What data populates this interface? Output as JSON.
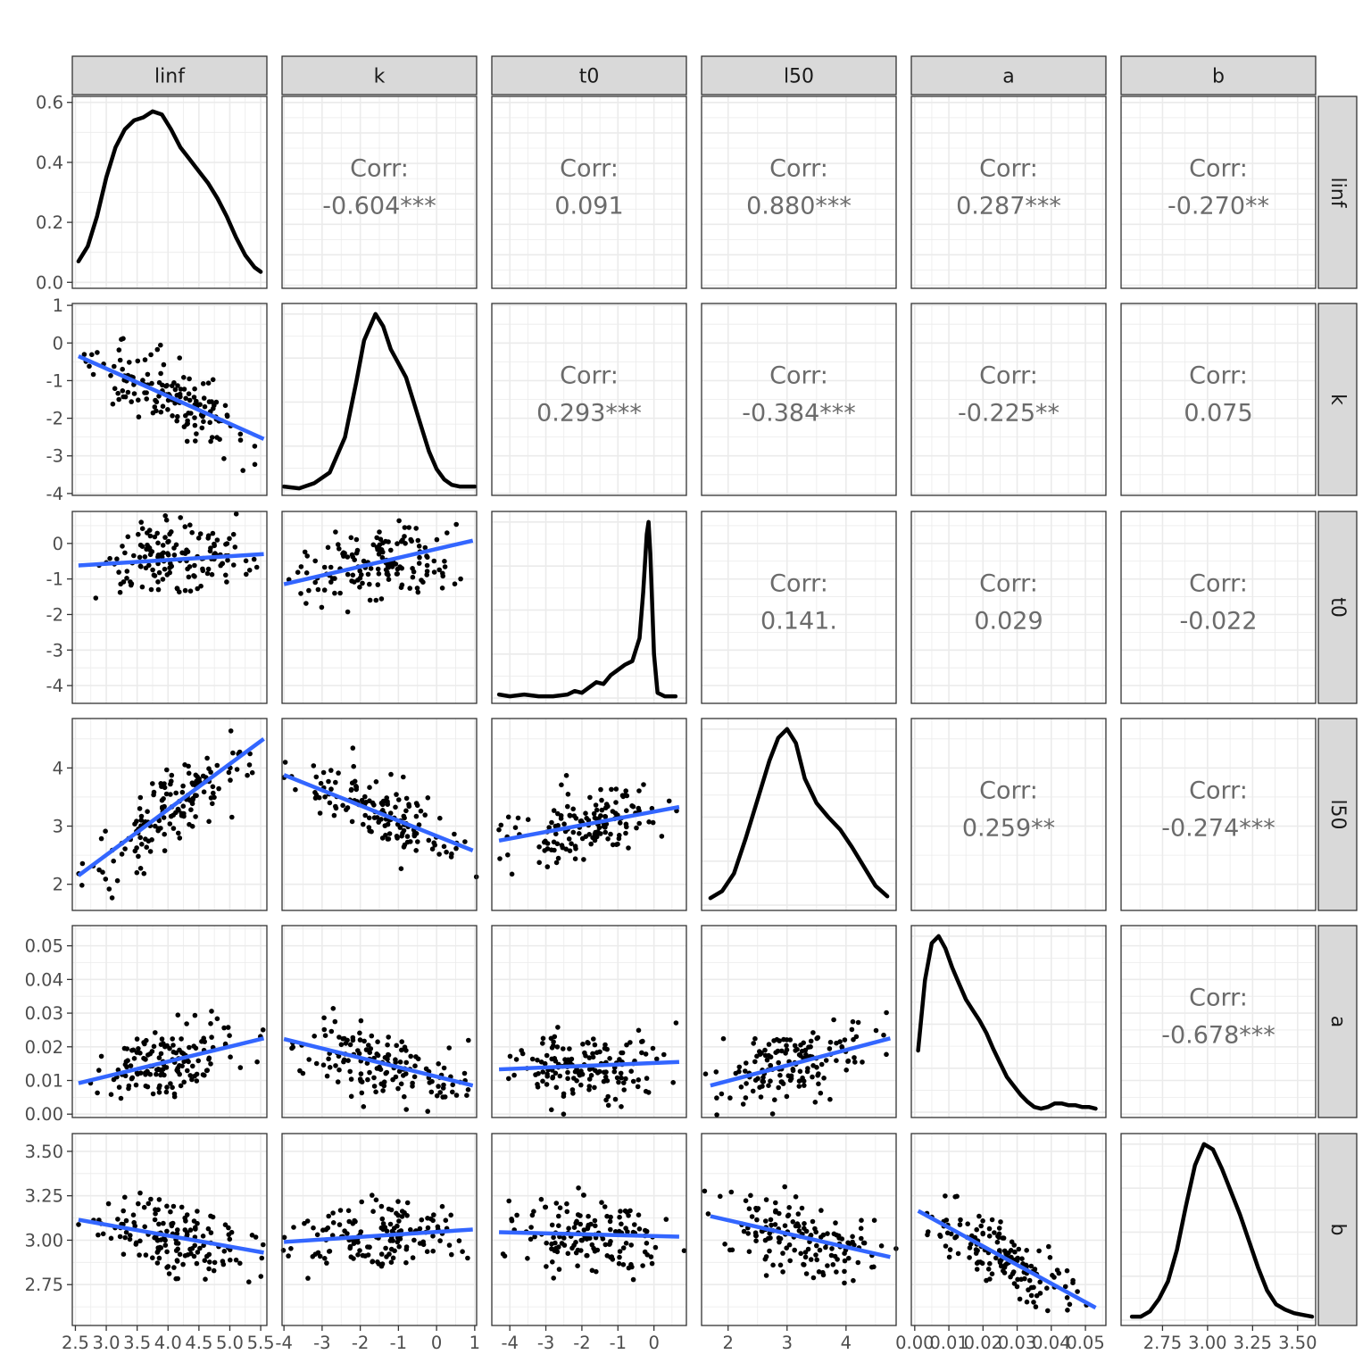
{
  "chart_data": {
    "type": "scatter-matrix",
    "title": "",
    "variables": [
      "linf",
      "k",
      "t0",
      "l50",
      "a",
      "b"
    ],
    "corr_label": "Corr:",
    "correlations": [
      {
        "row": "k",
        "col": "linf",
        "value": "-0.604***"
      },
      {
        "row": "t0",
        "col": "linf",
        "value": "0.091"
      },
      {
        "row": "l50",
        "col": "linf",
        "value": "0.880***"
      },
      {
        "row": "a",
        "col": "linf",
        "value": "0.287***"
      },
      {
        "row": "b",
        "col": "linf",
        "value": "-0.270**"
      },
      {
        "row": "t0",
        "col": "k",
        "value": "0.293***"
      },
      {
        "row": "l50",
        "col": "k",
        "value": "-0.384***"
      },
      {
        "row": "a",
        "col": "k",
        "value": "-0.225**"
      },
      {
        "row": "b",
        "col": "k",
        "value": "0.075"
      },
      {
        "row": "l50",
        "col": "t0",
        "value": "0.141."
      },
      {
        "row": "a",
        "col": "t0",
        "value": "0.029"
      },
      {
        "row": "b",
        "col": "t0",
        "value": "-0.022"
      },
      {
        "row": "a",
        "col": "l50",
        "value": "0.259**"
      },
      {
        "row": "b",
        "col": "l50",
        "value": "-0.274***"
      },
      {
        "row": "b",
        "col": "a",
        "value": "-0.678***"
      }
    ],
    "axes": {
      "linf": {
        "range": [
          2.45,
          5.6
        ],
        "ticks": [
          2.5,
          3.0,
          3.5,
          4.0,
          4.5,
          5.0,
          5.5
        ],
        "tick_labels": [
          "2.5",
          "3.0",
          "3.5",
          "4.0",
          "4.5",
          "5.0",
          "5.5"
        ]
      },
      "k": {
        "range": [
          -4.05,
          1.05
        ],
        "ticks": [
          -4,
          -3,
          -2,
          -1,
          0,
          1
        ],
        "tick_labels": [
          "-4",
          "-3",
          "-2",
          "-1",
          "0",
          "1"
        ]
      },
      "t0": {
        "range": [
          -4.5,
          0.9
        ],
        "ticks": [
          -4,
          -3,
          -2,
          -1,
          0
        ],
        "tick_labels": [
          "-4",
          "-3",
          "-2",
          "-1",
          "0"
        ]
      },
      "l50": {
        "range": [
          1.55,
          4.85
        ],
        "ticks": [
          2,
          3,
          4
        ],
        "tick_labels": [
          "2",
          "3",
          "4"
        ]
      },
      "a": {
        "range": [
          -0.001,
          0.056
        ],
        "ticks": [
          0.0,
          0.01,
          0.02,
          0.03,
          0.04,
          0.05
        ],
        "tick_labels": [
          "0.00",
          "0.01",
          "0.02",
          "0.03",
          "0.04",
          "0.05"
        ]
      },
      "b": {
        "range": [
          2.52,
          3.6
        ],
        "ticks": [
          2.75,
          3.0,
          3.25,
          3.5
        ],
        "tick_labels": [
          "2.75",
          "3.00",
          "3.25",
          "3.50"
        ]
      }
    },
    "linf_density": {
      "y_range": [
        -0.02,
        0.62
      ],
      "ticks": [
        0.0,
        0.2,
        0.4,
        0.6
      ],
      "tick_labels": [
        "0.0",
        "0.2",
        "0.4",
        "0.6"
      ],
      "x": [
        2.55,
        2.7,
        2.85,
        3.0,
        3.15,
        3.3,
        3.45,
        3.6,
        3.75,
        3.9,
        4.05,
        4.2,
        4.35,
        4.5,
        4.65,
        4.8,
        4.95,
        5.1,
        5.25,
        5.4,
        5.5
      ],
      "y": [
        0.07,
        0.12,
        0.22,
        0.35,
        0.45,
        0.51,
        0.54,
        0.55,
        0.57,
        0.56,
        0.51,
        0.45,
        0.41,
        0.37,
        0.33,
        0.28,
        0.22,
        0.15,
        0.09,
        0.05,
        0.035
      ]
    },
    "densities": {
      "k": {
        "x": [
          -4.0,
          -3.6,
          -3.2,
          -2.8,
          -2.4,
          -2.1,
          -1.9,
          -1.6,
          -1.4,
          -1.2,
          -1.0,
          -0.8,
          -0.6,
          -0.4,
          -0.2,
          0.0,
          0.2,
          0.4,
          0.6,
          1.0
        ],
        "y": [
          0.02,
          0.01,
          0.04,
          0.1,
          0.3,
          0.62,
          0.85,
          1.0,
          0.93,
          0.8,
          0.72,
          0.64,
          0.5,
          0.36,
          0.22,
          0.12,
          0.06,
          0.03,
          0.02,
          0.02
        ]
      },
      "t0": {
        "x": [
          -4.3,
          -4.0,
          -3.6,
          -3.2,
          -2.8,
          -2.4,
          -2.2,
          -2.0,
          -1.8,
          -1.6,
          -1.4,
          -1.2,
          -1.0,
          -0.8,
          -0.6,
          -0.4,
          -0.3,
          -0.2,
          -0.15,
          -0.1,
          0.0,
          0.1,
          0.3,
          0.6
        ],
        "y": [
          0.02,
          0.01,
          0.02,
          0.01,
          0.01,
          0.02,
          0.04,
          0.03,
          0.06,
          0.09,
          0.08,
          0.13,
          0.16,
          0.19,
          0.21,
          0.34,
          0.6,
          0.93,
          1.0,
          0.82,
          0.25,
          0.03,
          0.01,
          0.01
        ]
      },
      "l50": {
        "x": [
          1.7,
          1.9,
          2.1,
          2.3,
          2.5,
          2.7,
          2.85,
          3.0,
          3.15,
          3.3,
          3.5,
          3.7,
          3.9,
          4.1,
          4.3,
          4.5,
          4.7
        ],
        "y": [
          0.04,
          0.08,
          0.18,
          0.38,
          0.6,
          0.82,
          0.95,
          1.0,
          0.92,
          0.72,
          0.58,
          0.5,
          0.43,
          0.33,
          0.22,
          0.11,
          0.05
        ]
      },
      "a": {
        "x": [
          0.001,
          0.003,
          0.005,
          0.007,
          0.009,
          0.011,
          0.013,
          0.015,
          0.017,
          0.019,
          0.021,
          0.023,
          0.025,
          0.027,
          0.029,
          0.031,
          0.033,
          0.035,
          0.037,
          0.039,
          0.041,
          0.043,
          0.045,
          0.047,
          0.049,
          0.051,
          0.053
        ],
        "y": [
          0.35,
          0.75,
          0.96,
          1.0,
          0.93,
          0.82,
          0.73,
          0.64,
          0.58,
          0.52,
          0.45,
          0.36,
          0.28,
          0.2,
          0.15,
          0.1,
          0.06,
          0.03,
          0.02,
          0.03,
          0.05,
          0.05,
          0.04,
          0.04,
          0.03,
          0.03,
          0.02
        ]
      },
      "b": {
        "x": [
          2.58,
          2.63,
          2.68,
          2.73,
          2.78,
          2.83,
          2.88,
          2.93,
          2.98,
          3.03,
          3.08,
          3.13,
          3.18,
          3.23,
          3.28,
          3.33,
          3.38,
          3.43,
          3.48,
          3.53,
          3.58
        ],
        "y": [
          0.02,
          0.02,
          0.05,
          0.12,
          0.22,
          0.4,
          0.65,
          0.88,
          1.0,
          0.97,
          0.86,
          0.73,
          0.6,
          0.45,
          0.3,
          0.17,
          0.09,
          0.06,
          0.04,
          0.03,
          0.02
        ]
      }
    },
    "regression_lines": [
      {
        "row": "k",
        "col": "linf",
        "x": [
          2.55,
          5.55
        ],
        "y": [
          -0.35,
          -2.55
        ]
      },
      {
        "row": "t0",
        "col": "linf",
        "x": [
          2.55,
          5.55
        ],
        "y": [
          -0.62,
          -0.3
        ]
      },
      {
        "row": "t0",
        "col": "k",
        "x": [
          -4.0,
          0.95
        ],
        "y": [
          -1.15,
          0.08
        ]
      },
      {
        "row": "l50",
        "col": "linf",
        "x": [
          2.55,
          5.55
        ],
        "y": [
          2.15,
          4.5
        ]
      },
      {
        "row": "l50",
        "col": "k",
        "x": [
          -4.0,
          0.95
        ],
        "y": [
          3.88,
          2.58
        ]
      },
      {
        "row": "l50",
        "col": "t0",
        "x": [
          -4.3,
          0.7
        ],
        "y": [
          2.75,
          3.33
        ]
      },
      {
        "row": "a",
        "col": "linf",
        "x": [
          2.55,
          5.55
        ],
        "y": [
          0.0092,
          0.0225
        ]
      },
      {
        "row": "a",
        "col": "k",
        "x": [
          -4.0,
          0.95
        ],
        "y": [
          0.0223,
          0.0085
        ]
      },
      {
        "row": "a",
        "col": "t0",
        "x": [
          -4.3,
          0.7
        ],
        "y": [
          0.0133,
          0.0155
        ]
      },
      {
        "row": "a",
        "col": "l50",
        "x": [
          1.7,
          4.75
        ],
        "y": [
          0.0085,
          0.0225
        ]
      },
      {
        "row": "b",
        "col": "linf",
        "x": [
          2.55,
          5.55
        ],
        "y": [
          3.115,
          2.93
        ]
      },
      {
        "row": "b",
        "col": "k",
        "x": [
          -4.0,
          0.95
        ],
        "y": [
          2.99,
          3.06
        ]
      },
      {
        "row": "b",
        "col": "t0",
        "x": [
          -4.3,
          0.7
        ],
        "y": [
          3.045,
          3.02
        ]
      },
      {
        "row": "b",
        "col": "l50",
        "x": [
          1.7,
          4.75
        ],
        "y": [
          3.135,
          2.905
        ]
      },
      {
        "row": "b",
        "col": "a",
        "x": [
          0.001,
          0.053
        ],
        "y": [
          3.165,
          2.62
        ]
      }
    ]
  }
}
